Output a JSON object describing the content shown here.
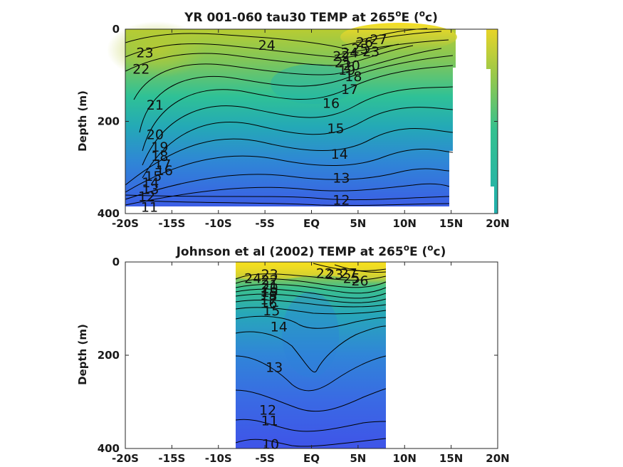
{
  "figure": {
    "colors": {
      "warm": "#f5de1e",
      "mid_warm": "#a8c83a",
      "mid": "#2ec29a",
      "cool": "#2aa5b8",
      "cold": "#3a5fe8",
      "contour": "#000000"
    }
  },
  "chart_data": [
    {
      "type": "heatmap",
      "title_main": "YR 001-060 tau30 TEMP at 265",
      "title_sup": "o",
      "title_mid": "E (",
      "title_sup2": "o",
      "title_end": "c)",
      "ylabel": "Depth (m)",
      "xlim": [
        -20,
        20
      ],
      "ylim": [
        0,
        400
      ],
      "xticks": [
        -20,
        -15,
        -10,
        -5,
        0,
        5,
        10,
        15,
        20
      ],
      "xtick_labels": [
        "-20S",
        "-15S",
        "-10S",
        "-5S",
        "EQ",
        "5N",
        "10N",
        "15N",
        "20N"
      ],
      "yticks": [
        0,
        200,
        400
      ],
      "ytick_labels": [
        "0",
        "200",
        "400"
      ],
      "data_extent": {
        "lon": [
          -19.8,
          15
        ],
        "depth": [
          0,
          385
        ]
      },
      "contour_levels": [
        11,
        12,
        13,
        14,
        15,
        16,
        17,
        18,
        19,
        20,
        21,
        22,
        23,
        24,
        25,
        26,
        27
      ],
      "contour_labels": [
        {
          "text": "24",
          "lon": -4.8,
          "depth": 34
        },
        {
          "text": "23",
          "lon": -17.9,
          "depth": 50
        },
        {
          "text": "22",
          "lon": -18.3,
          "depth": 86
        },
        {
          "text": "21",
          "lon": -16.8,
          "depth": 164
        },
        {
          "text": "20",
          "lon": -16.8,
          "depth": 228
        },
        {
          "text": "19",
          "lon": -16.3,
          "depth": 255
        },
        {
          "text": "18",
          "lon": -16.3,
          "depth": 275
        },
        {
          "text": "17",
          "lon": -16.0,
          "depth": 293
        },
        {
          "text": "16",
          "lon": -15.8,
          "depth": 306
        },
        {
          "text": "15",
          "lon": -17.0,
          "depth": 318
        },
        {
          "text": "14",
          "lon": -17.3,
          "depth": 332
        },
        {
          "text": "13",
          "lon": -17.3,
          "depth": 347
        },
        {
          "text": "12",
          "lon": -17.7,
          "depth": 362
        },
        {
          "text": "11",
          "lon": -17.4,
          "depth": 385
        },
        {
          "text": "27",
          "lon": 7.2,
          "depth": 22
        },
        {
          "text": "26",
          "lon": 5.7,
          "depth": 28
        },
        {
          "text": "25",
          "lon": 5.2,
          "depth": 42
        },
        {
          "text": "24",
          "lon": 4.1,
          "depth": 50
        },
        {
          "text": "23",
          "lon": 6.4,
          "depth": 48
        },
        {
          "text": "22",
          "lon": 3.2,
          "depth": 58
        },
        {
          "text": "21",
          "lon": 3.4,
          "depth": 72
        },
        {
          "text": "20",
          "lon": 4.3,
          "depth": 78
        },
        {
          "text": "19",
          "lon": 3.8,
          "depth": 88
        },
        {
          "text": "18",
          "lon": 4.5,
          "depth": 102
        },
        {
          "text": "17",
          "lon": 4.1,
          "depth": 130
        },
        {
          "text": "16",
          "lon": 2.1,
          "depth": 160
        },
        {
          "text": "15",
          "lon": 2.6,
          "depth": 215
        },
        {
          "text": "14",
          "lon": 3.0,
          "depth": 270
        },
        {
          "text": "13",
          "lon": 3.2,
          "depth": 322
        },
        {
          "text": "12",
          "lon": 3.2,
          "depth": 370
        }
      ]
    },
    {
      "type": "heatmap",
      "title_main": "Johnson et al (2002) TEMP at 265",
      "title_sup": "o",
      "title_mid": "E (",
      "title_sup2": "o",
      "title_end": "c)",
      "ylabel": "Depth (m)",
      "xlim": [
        -20,
        20
      ],
      "ylim": [
        0,
        400
      ],
      "xticks": [
        -20,
        -15,
        -10,
        -5,
        0,
        5,
        10,
        15,
        20
      ],
      "xtick_labels": [
        "-20S",
        "-15S",
        "-10S",
        "-5S",
        "EQ",
        "5N",
        "10N",
        "15N",
        "20N"
      ],
      "yticks": [
        0,
        200,
        400
      ],
      "ytick_labels": [
        "0",
        "200",
        "400"
      ],
      "data_extent": {
        "lon": [
          -8,
          8
        ],
        "depth": [
          0,
          400
        ]
      },
      "contour_levels": [
        10,
        11,
        12,
        13,
        14,
        15,
        16,
        17,
        18,
        19,
        20,
        21,
        22,
        23,
        24,
        25,
        26,
        27
      ],
      "contour_labels": [
        {
          "text": "24",
          "lon": -6.3,
          "depth": 34
        },
        {
          "text": "23",
          "lon": -4.5,
          "depth": 26
        },
        {
          "text": "22",
          "lon": -4.5,
          "depth": 38
        },
        {
          "text": "21",
          "lon": -4.5,
          "depth": 48
        },
        {
          "text": "20",
          "lon": -4.5,
          "depth": 56
        },
        {
          "text": "19",
          "lon": -4.5,
          "depth": 64
        },
        {
          "text": "18",
          "lon": -4.6,
          "depth": 72
        },
        {
          "text": "17",
          "lon": -4.6,
          "depth": 80
        },
        {
          "text": "16",
          "lon": -4.6,
          "depth": 88
        },
        {
          "text": "15",
          "lon": -4.3,
          "depth": 104
        },
        {
          "text": "14",
          "lon": -3.5,
          "depth": 138
        },
        {
          "text": "13",
          "lon": -4.0,
          "depth": 225
        },
        {
          "text": "12",
          "lon": -4.7,
          "depth": 317
        },
        {
          "text": "11",
          "lon": -4.5,
          "depth": 340
        },
        {
          "text": "10",
          "lon": -4.4,
          "depth": 390
        },
        {
          "text": "27",
          "lon": 4.0,
          "depth": 24
        },
        {
          "text": "26",
          "lon": 5.2,
          "depth": 40
        },
        {
          "text": "25",
          "lon": 4.3,
          "depth": 34
        },
        {
          "text": "22",
          "lon": 1.4,
          "depth": 24
        },
        {
          "text": "23",
          "lon": 2.5,
          "depth": 26
        }
      ]
    }
  ]
}
